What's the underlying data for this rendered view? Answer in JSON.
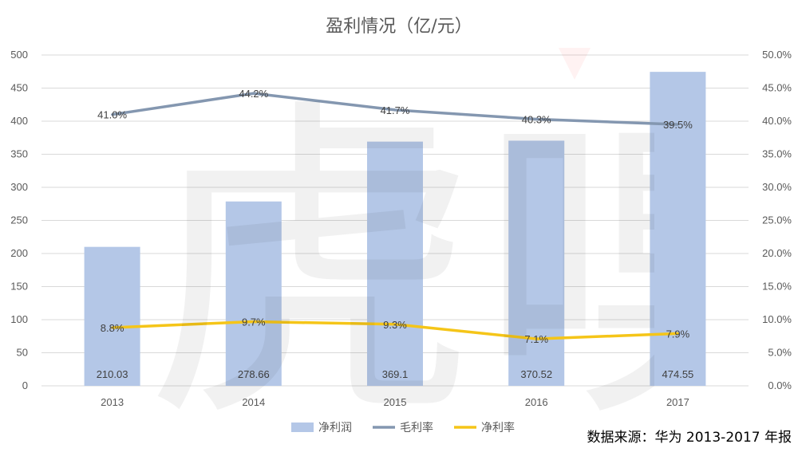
{
  "chart_data": {
    "type": "bar",
    "title": "盈利情况（亿/元）",
    "categories": [
      "2013",
      "2014",
      "2015",
      "2016",
      "2017"
    ],
    "series": [
      {
        "name": "净利润",
        "type": "bar",
        "axis": "left",
        "color": "#b4c7e7",
        "values": [
          210.03,
          278.66,
          369.1,
          370.52,
          474.55
        ],
        "labels": [
          "210.03",
          "278.66",
          "369.1",
          "370.52",
          "474.55"
        ]
      },
      {
        "name": "毛利率",
        "type": "line",
        "axis": "right",
        "color": "#8497b0",
        "values": [
          41.0,
          44.2,
          41.7,
          40.3,
          39.5
        ],
        "labels": [
          "41.0%",
          "44.2%",
          "41.7%",
          "40.3%",
          "39.5%"
        ]
      },
      {
        "name": "净利率",
        "type": "line",
        "axis": "right",
        "color": "#f5c518",
        "values": [
          8.8,
          9.7,
          9.3,
          7.1,
          7.9
        ],
        "labels": [
          "8.8%",
          "9.7%",
          "9.3%",
          "7.1%",
          "7.9%"
        ]
      }
    ],
    "y_left": {
      "min": 0,
      "max": 500,
      "ticks": [
        "0",
        "50",
        "100",
        "150",
        "200",
        "250",
        "300",
        "350",
        "400",
        "450",
        "500"
      ]
    },
    "y_right": {
      "min": 0,
      "max": 50,
      "ticks": [
        "0.0%",
        "5.0%",
        "10.0%",
        "15.0%",
        "20.0%",
        "25.0%",
        "30.0%",
        "35.0%",
        "40.0%",
        "45.0%",
        "50.0%"
      ]
    },
    "grid": true,
    "legend": "bottom"
  },
  "source_text": "数据来源：华为 2013-2017 年报",
  "watermark_text": "虎嗅"
}
